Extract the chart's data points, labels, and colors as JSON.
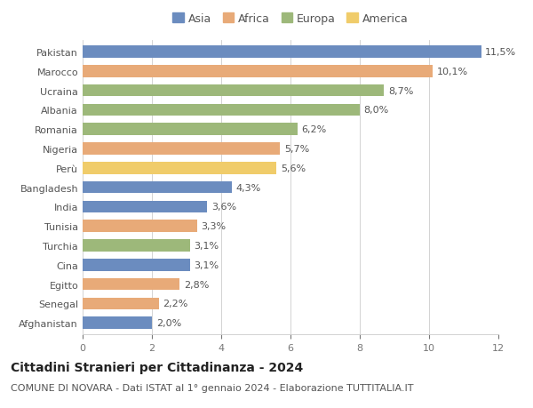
{
  "countries": [
    "Pakistan",
    "Marocco",
    "Ucraina",
    "Albania",
    "Romania",
    "Nigeria",
    "Perù",
    "Bangladesh",
    "India",
    "Tunisia",
    "Turchia",
    "Cina",
    "Egitto",
    "Senegal",
    "Afghanistan"
  ],
  "values": [
    11.5,
    10.1,
    8.7,
    8.0,
    6.2,
    5.7,
    5.6,
    4.3,
    3.6,
    3.3,
    3.1,
    3.1,
    2.8,
    2.2,
    2.0
  ],
  "labels": [
    "11,5%",
    "10,1%",
    "8,7%",
    "8,0%",
    "6,2%",
    "5,7%",
    "5,6%",
    "4,3%",
    "3,6%",
    "3,3%",
    "3,1%",
    "3,1%",
    "2,8%",
    "2,2%",
    "2,0%"
  ],
  "colors": [
    "#6b8cbf",
    "#e8aa78",
    "#9db87a",
    "#9db87a",
    "#9db87a",
    "#e8aa78",
    "#f0cc6a",
    "#6b8cbf",
    "#6b8cbf",
    "#e8aa78",
    "#9db87a",
    "#6b8cbf",
    "#e8aa78",
    "#e8aa78",
    "#6b8cbf"
  ],
  "legend_labels": [
    "Asia",
    "Africa",
    "Europa",
    "America"
  ],
  "legend_colors": [
    "#6b8cbf",
    "#e8aa78",
    "#9db87a",
    "#f0cc6a"
  ],
  "title": "Cittadini Stranieri per Cittadinanza - 2024",
  "subtitle": "COMUNE DI NOVARA - Dati ISTAT al 1° gennaio 2024 - Elaborazione TUTTITALIA.IT",
  "xlim": [
    0,
    12
  ],
  "xticks": [
    0,
    2,
    4,
    6,
    8,
    10,
    12
  ],
  "bg_color": "#ffffff",
  "bar_height": 0.62,
  "title_fontsize": 10,
  "subtitle_fontsize": 8,
  "label_fontsize": 8,
  "tick_fontsize": 8,
  "legend_fontsize": 9
}
